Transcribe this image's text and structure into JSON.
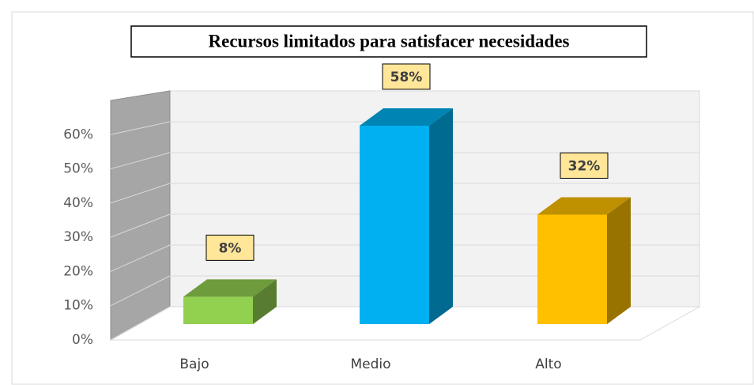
{
  "chart_data": {
    "type": "bar",
    "title": "Recursos limitados para satisfacer necesidades",
    "categories": [
      "Bajo",
      "Medio",
      "Alto"
    ],
    "values": [
      8,
      58,
      32
    ],
    "value_labels": [
      "8%",
      "58%",
      "32%"
    ],
    "colors": [
      "#92d050",
      "#00b0f0",
      "#ffc000"
    ],
    "ylim": [
      0,
      70
    ],
    "yticks": [
      {
        "value": 0,
        "label": "0%"
      },
      {
        "value": 10,
        "label": "10%"
      },
      {
        "value": 20,
        "label": "20%"
      },
      {
        "value": 30,
        "label": "30%"
      },
      {
        "value": 40,
        "label": "40%"
      },
      {
        "value": 50,
        "label": "50%"
      },
      {
        "value": 60,
        "label": "60%"
      }
    ],
    "grid": true
  }
}
